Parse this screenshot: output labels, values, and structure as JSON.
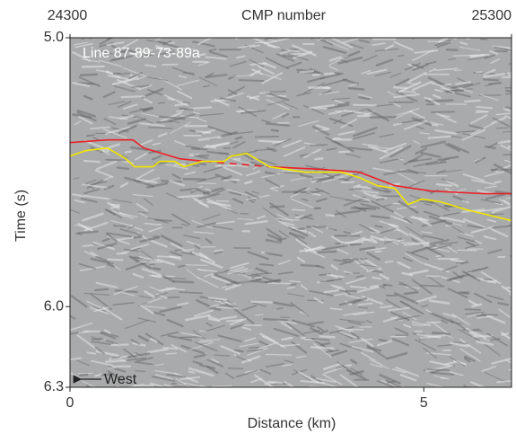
{
  "chart_data": {
    "type": "line",
    "xlabel": "Distance (km)",
    "ylabel": "Time (s)",
    "x2label": "CMP number",
    "annotation": "Line 87-89-73-89a",
    "direction_label": "West",
    "xlim": [
      0,
      6.24
    ],
    "xticks": [
      0,
      5
    ],
    "x2lim": [
      24300,
      25300
    ],
    "x2ticks": [
      24300,
      25300
    ],
    "ylim": [
      5.0,
      6.3
    ],
    "yticks": [
      {
        "value": 5.0,
        "label": "5.0"
      },
      {
        "value": 6.0,
        "label": "6.0"
      },
      6.3
    ],
    "y_inverted": true,
    "series": [
      {
        "color": "#e8232a",
        "dashed": false,
        "x": [
          0,
          0.53,
          0.89,
          1.04,
          1.55,
          1.9
        ],
        "values": [
          5.39,
          5.38,
          5.38,
          5.41,
          5.45,
          5.46
        ]
      },
      {
        "color": "#e8232a",
        "dashed": true,
        "x": [
          1.9,
          2.82
        ],
        "values": [
          5.46,
          5.48
        ]
      },
      {
        "color": "#e8232a",
        "dashed": false,
        "x": [
          2.82,
          3.58,
          4.09,
          4.59,
          5.1,
          5.86,
          6.24
        ],
        "values": [
          5.48,
          5.49,
          5.5,
          5.55,
          5.57,
          5.58,
          5.58
        ]
      },
      {
        "color": "#f2e600",
        "dashed": false,
        "x": [
          0,
          0.22,
          0.53,
          0.79,
          0.91,
          1.17,
          1.27,
          1.48,
          1.61,
          1.87,
          2.18,
          2.28,
          2.5,
          2.69,
          2.82,
          3.07,
          3.32,
          3.83,
          4.09,
          4.34,
          4.59,
          4.78,
          4.97,
          5.23,
          5.61,
          6.24
        ],
        "values": [
          5.44,
          5.42,
          5.41,
          5.45,
          5.48,
          5.48,
          5.46,
          5.46,
          5.48,
          5.46,
          5.46,
          5.44,
          5.43,
          5.46,
          5.48,
          5.49,
          5.5,
          5.5,
          5.52,
          5.55,
          5.56,
          5.62,
          5.6,
          5.61,
          5.64,
          5.68
        ]
      }
    ]
  }
}
